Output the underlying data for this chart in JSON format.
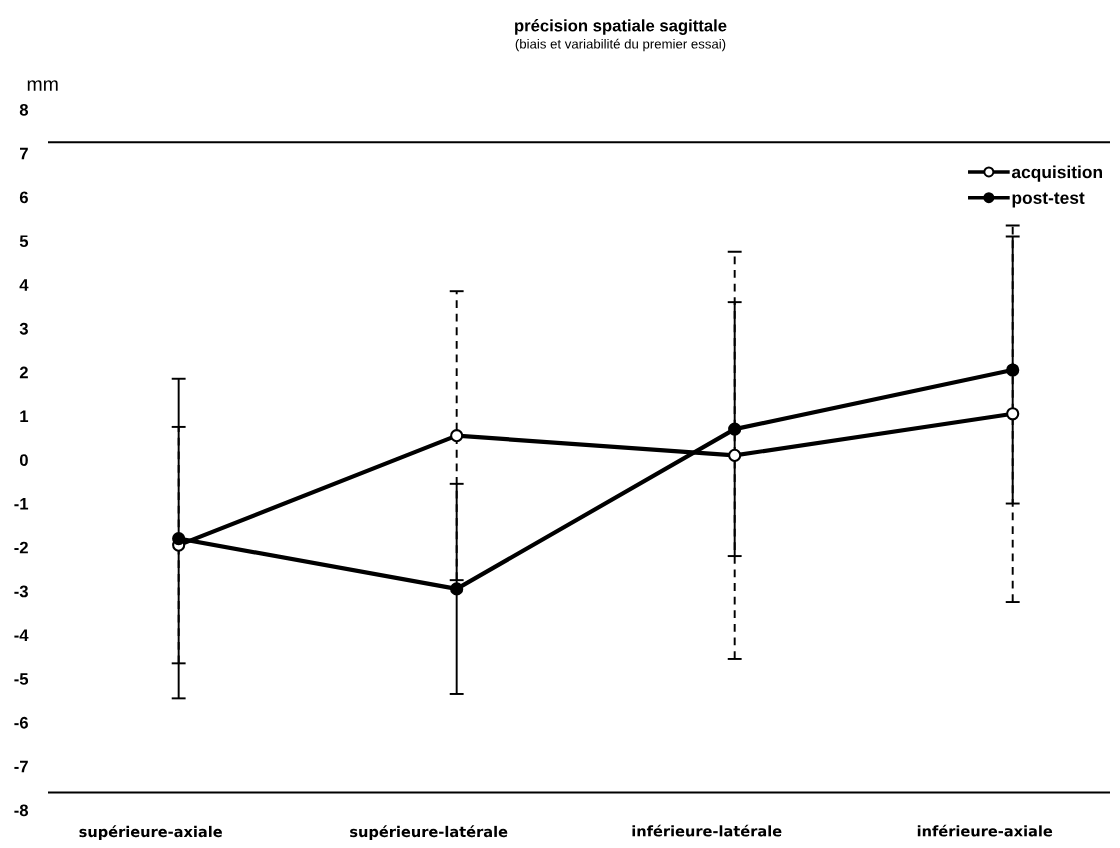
{
  "chart_data": {
    "type": "line",
    "title": "précision spatiale sagittale",
    "subtitle": "(biais et variabilité du premier essai)",
    "ylabel": "mm",
    "categories": [
      "supérieure-axiale",
      "supérieure-latérale",
      "inférieure-latérale",
      "inférieure-axiale"
    ],
    "series": [
      {
        "name": "acquisition",
        "color": "#000000",
        "values": [
          -1.95,
          0.55,
          0.1,
          1.05
        ],
        "errors": [
          2.7,
          3.3,
          4.65,
          4.3
        ]
      },
      {
        "name": "post-test",
        "color": "#000000",
        "values": [
          -1.8,
          -2.95,
          0.7,
          2.05
        ],
        "errors": [
          3.65,
          2.4,
          2.9,
          3.05
        ]
      }
    ],
    "ylim": [
      -8,
      8
    ],
    "yticks": [
      -8,
      -7,
      -6,
      -5,
      -4,
      -3,
      -2,
      -1,
      0,
      1,
      2,
      3,
      4,
      5,
      6,
      7,
      8
    ],
    "ref_lines": [
      {
        "axis": "y",
        "value": 7.25,
        "color": "#000000"
      },
      {
        "axis": "y",
        "value": -7.6,
        "color": "#000000"
      }
    ],
    "grid": false,
    "legend": "top right",
    "marker": "circle",
    "line_style": "solid"
  }
}
